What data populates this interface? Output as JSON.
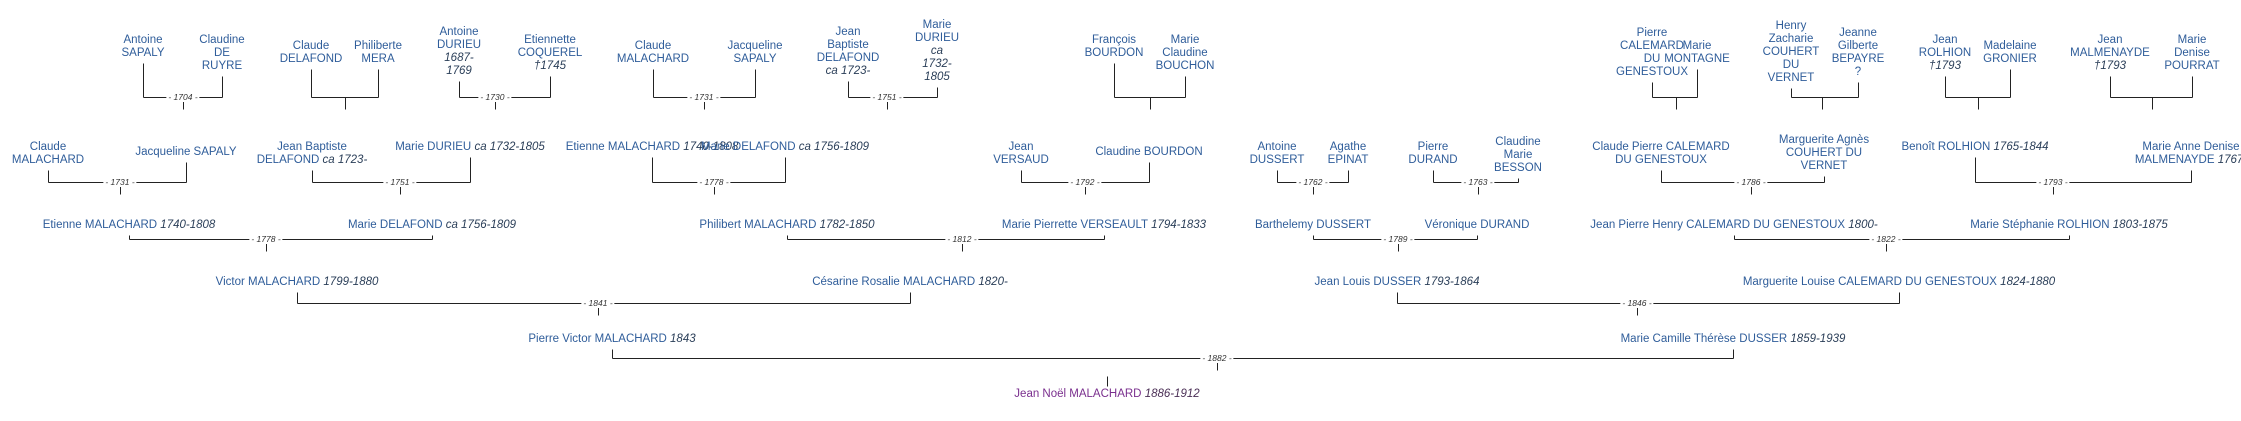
{
  "title": "",
  "couples": [
    {
      "id": "c1",
      "spouse1": {
        "name": "Antoine\nSAPALY",
        "dates": ""
      },
      "spouse2": {
        "name": "Claudine\nDE\nRUYRE",
        "dates": ""
      },
      "marriage": "- 1704 -"
    },
    {
      "id": "c2",
      "spouse1": {
        "name": "Claude\nDELAFOND",
        "dates": ""
      },
      "spouse2": {
        "name": "Philiberte\nMERA",
        "dates": ""
      },
      "marriage": ""
    },
    {
      "id": "c3",
      "spouse1": {
        "name": "Antoine\nDURIEU",
        "dates": "1687-\n1769"
      },
      "spouse2": {
        "name": "Etiennette\nCOQUEREL",
        "dates": "†1745"
      },
      "marriage": "- 1730 -"
    },
    {
      "id": "c4",
      "spouse1": {
        "name": "Claude\nMALACHARD",
        "dates": ""
      },
      "spouse2": {
        "name": "Jacqueline\nSAPALY",
        "dates": ""
      },
      "marriage": "- 1731 -"
    },
    {
      "id": "c5",
      "spouse1": {
        "name": "Jean\nBaptiste\nDELAFOND",
        "dates": "ca 1723-"
      },
      "spouse2": {
        "name": "Marie\nDURIEU",
        "dates": "ca\n1732-\n1805"
      },
      "marriage": "- 1751 -"
    },
    {
      "id": "c6",
      "spouse1": {
        "name": "François\nBOURDON",
        "dates": ""
      },
      "spouse2": {
        "name": "Marie\nClaudine\nBOUCHON",
        "dates": ""
      },
      "marriage": ""
    },
    {
      "id": "c7",
      "spouse1": {
        "name": "Pierre\nCALEMARD\nDU\nGENESTOUX",
        "dates": ""
      },
      "spouse2": {
        "name": "Marie\nMONTAGNE",
        "dates": ""
      },
      "marriage": ""
    },
    {
      "id": "c8",
      "spouse1": {
        "name": "Henry\nZacharie\nCOUHERT\nDU\nVERNET",
        "dates": ""
      },
      "spouse2": {
        "name": "Jeanne\nGilberte\nBEPAYRE\n?",
        "dates": ""
      },
      "marriage": ""
    },
    {
      "id": "c9",
      "spouse1": {
        "name": "Jean\nROLHION",
        "dates": "†1793"
      },
      "spouse2": {
        "name": "Madelaine\nGRONIER",
        "dates": ""
      },
      "marriage": ""
    },
    {
      "id": "c10",
      "spouse1": {
        "name": "Jean\nMALMENAYDE",
        "dates": "†1793"
      },
      "spouse2": {
        "name": "Marie\nDenise\nPOURRAT",
        "dates": ""
      },
      "marriage": ""
    },
    {
      "id": "c11",
      "spouse1": {
        "name": "Claude\nMALACHARD",
        "dates": ""
      },
      "spouse2": {
        "name": "Jacqueline SAPALY",
        "dates": ""
      },
      "marriage": "- 1731 -"
    },
    {
      "id": "c12",
      "spouse1": {
        "name": "Jean Baptiste\nDELAFOND",
        "dates": "ca 1723-"
      },
      "spouse2": {
        "name": "Marie DURIEU",
        "dates": "ca 1732-1805"
      },
      "marriage": "- 1751 -"
    },
    {
      "id": "c13",
      "spouse1": {
        "name": "Etienne MALACHARD",
        "dates": "1740-1808"
      },
      "spouse2": {
        "name": "Marie DELAFOND",
        "dates": "ca 1756-1809"
      },
      "marriage": "- 1778 -"
    },
    {
      "id": "c14",
      "spouse1": {
        "name": "Jean\nVERSAUD",
        "dates": ""
      },
      "spouse2": {
        "name": "Claudine BOURDON",
        "dates": ""
      },
      "marriage": "- 1792 -"
    },
    {
      "id": "c15",
      "spouse1": {
        "name": "Antoine\nDUSSERT",
        "dates": ""
      },
      "spouse2": {
        "name": "Agathe\nEPINAT",
        "dates": ""
      },
      "marriage": "- 1762 -"
    },
    {
      "id": "c16",
      "spouse1": {
        "name": "Pierre\nDURAND",
        "dates": ""
      },
      "spouse2": {
        "name": "Claudine\nMarie\nBESSON",
        "dates": ""
      },
      "marriage": "- 1763 -"
    },
    {
      "id": "c17",
      "spouse1": {
        "name": "Claude Pierre CALEMARD\nDU GENESTOUX",
        "dates": ""
      },
      "spouse2": {
        "name": "Marguerite Agnès\nCOUHERT DU\nVERNET",
        "dates": ""
      },
      "marriage": "- 1786 -"
    },
    {
      "id": "c18",
      "spouse1": {
        "name": "Benoît ROLHION",
        "dates": "1765-1844"
      },
      "spouse2": {
        "name": "Marie Anne Denise\nMALMENAYDE",
        "dates": "1767-"
      },
      "marriage": "- 1793 -"
    },
    {
      "id": "c19",
      "spouse1": {
        "name": "Etienne MALACHARD",
        "dates": "1740-1808"
      },
      "spouse2": {
        "name": "Marie DELAFOND",
        "dates": "ca 1756-1809"
      },
      "marriage": "- 1778 -"
    },
    {
      "id": "c20",
      "spouse1": {
        "name": "Philibert MALACHARD",
        "dates": "1782-1850"
      },
      "spouse2": {
        "name": "Marie Pierrette VERSEAULT",
        "dates": "1794-1833"
      },
      "marriage": "- 1812 -"
    },
    {
      "id": "c21",
      "spouse1": {
        "name": "Barthelemy DUSSERT",
        "dates": ""
      },
      "spouse2": {
        "name": "Véronique DURAND",
        "dates": ""
      },
      "marriage": "- 1789 -"
    },
    {
      "id": "c22",
      "spouse1": {
        "name": "Jean Pierre Henry CALEMARD DU GENESTOUX",
        "dates": "1800-"
      },
      "spouse2": {
        "name": "Marie Stéphanie ROLHION",
        "dates": "1803-1875"
      },
      "marriage": "- 1822 -"
    },
    {
      "id": "c23",
      "spouse1": {
        "name": "Victor MALACHARD",
        "dates": "1799-1880"
      },
      "spouse2": {
        "name": "Césarine Rosalie MALACHARD",
        "dates": "1820-"
      },
      "marriage": "- 1841 -"
    },
    {
      "id": "c24",
      "spouse1": {
        "name": "Jean Louis DUSSER",
        "dates": "1793-1864"
      },
      "spouse2": {
        "name": "Marguerite Louise CALEMARD DU GENESTOUX",
        "dates": "1824-1880"
      },
      "marriage": "- 1846 -"
    },
    {
      "id": "c25",
      "spouse1": {
        "name": "Pierre Victor MALACHARD",
        "dates": "1843"
      },
      "spouse2": {
        "name": "Marie Camille Thérèse DUSSER",
        "dates": "1859-1939"
      },
      "marriage": "- 1882 -"
    }
  ],
  "root": {
    "name": "Jean Noël MALACHARD",
    "dates": "1886-1912"
  }
}
